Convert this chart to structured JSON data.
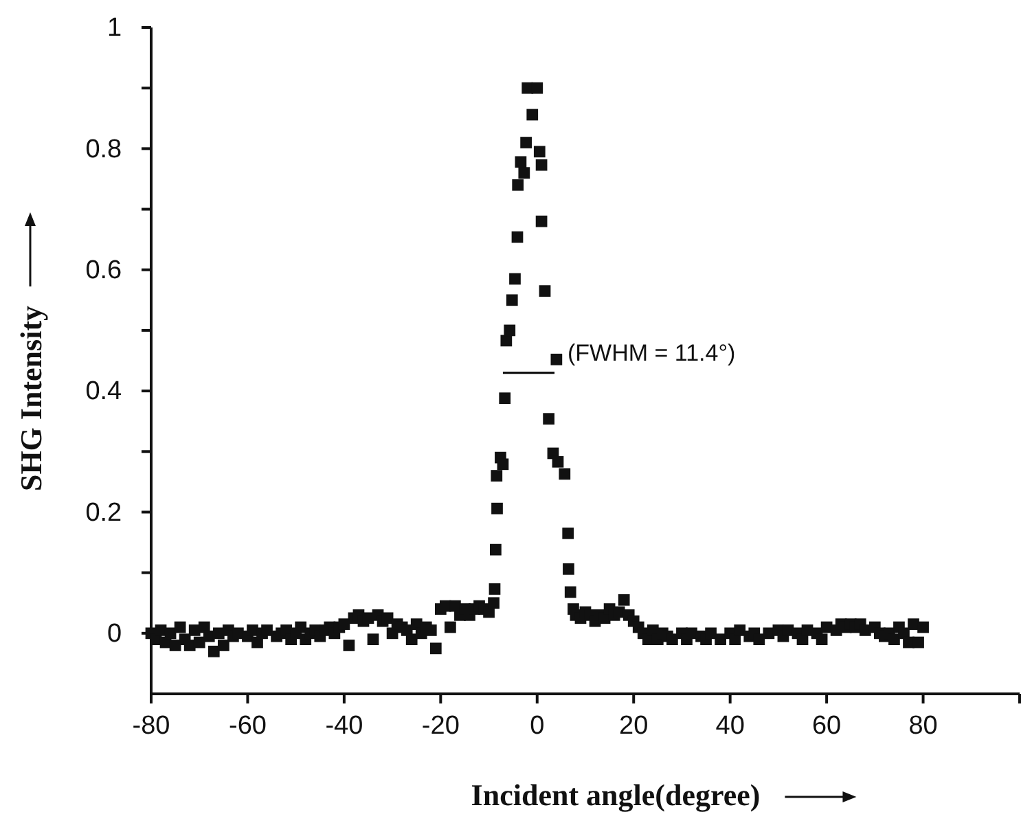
{
  "chart_data": {
    "type": "scatter",
    "xlabel": "Incident angle(degree)",
    "ylabel": "SHG Intensity",
    "marker": "square",
    "grid": false,
    "xlim": [
      -80,
      100
    ],
    "xticks": [
      -80,
      -60,
      -40,
      -20,
      0,
      20,
      40,
      60,
      80,
      {
        "value": 100,
        "label": null
      }
    ],
    "ylim": [
      -0.1,
      1
    ],
    "yticks": [
      0,
      {
        "value": 0.1,
        "label": null
      },
      0.2,
      {
        "value": 0.3,
        "label": null
      },
      0.4,
      {
        "value": 0.5,
        "label": null
      },
      0.6,
      {
        "value": 0.7,
        "label": null
      },
      0.8,
      {
        "value": 0.9,
        "label": null
      },
      1
    ],
    "annotations": [
      {
        "text": "(FWHM = 11.4°)",
        "x": 6.3,
        "y": 0.46
      }
    ],
    "series": [
      {
        "color": "#111111",
        "x": [
          -80,
          -79,
          -78,
          -77,
          -76,
          -75,
          -74,
          -73,
          -72,
          -71,
          -70,
          -69,
          -68,
          -67,
          -66,
          -65,
          -64,
          -63,
          -62,
          -60,
          -59,
          -58,
          -57,
          -56,
          -54,
          -53,
          -52,
          -51,
          -50,
          -49,
          -48,
          -47,
          -46,
          -45,
          -44,
          -43,
          -42,
          -41,
          -40,
          -39,
          -38,
          -37,
          -36,
          -35,
          -34,
          -33,
          -32,
          -31,
          -30,
          -29,
          -28,
          -27,
          -26,
          -25,
          -24,
          -23,
          -22,
          -21,
          -20,
          -19,
          -18,
          -17,
          -16,
          -15,
          -14,
          -13,
          -12,
          -11,
          -10,
          -9,
          -8.8,
          -8.6,
          -8.3,
          -8.4,
          -7.6,
          -7.1,
          -6.7,
          -6.4,
          -5.7,
          -5.2,
          -4.6,
          -4.1,
          -4,
          -3.4,
          -2.7,
          -2.3,
          -2,
          -1,
          0,
          0.5,
          0.9,
          0.9,
          1.6,
          2.4,
          3.3,
          4,
          4.3,
          5.7,
          6.4,
          6.5,
          6.9,
          7.5,
          8,
          9,
          10,
          11,
          12,
          13,
          14,
          15,
          16,
          17,
          18,
          19,
          20,
          21,
          22,
          23,
          24,
          25,
          26,
          27,
          28,
          30,
          31,
          32,
          34,
          35,
          36,
          38,
          40,
          41,
          42,
          44,
          45,
          46,
          48,
          50,
          51,
          52,
          54,
          55,
          56,
          58,
          59,
          60,
          62,
          63,
          64,
          65,
          66,
          67,
          68,
          70,
          71,
          72,
          73,
          74,
          75,
          76,
          77,
          78,
          79,
          80
        ],
        "values": [
          0,
          -0.01,
          0.005,
          -0.015,
          0,
          -0.02,
          0.01,
          -0.01,
          -0.02,
          0.005,
          -0.015,
          0.01,
          -0.005,
          -0.03,
          0,
          -0.02,
          0.005,
          -0.005,
          0,
          -0.005,
          0.005,
          -0.015,
          0,
          0.005,
          -0.005,
          0,
          0.005,
          -0.01,
          0,
          0.01,
          -0.01,
          0,
          0.005,
          -0.005,
          0.005,
          0.01,
          0,
          0.01,
          0.015,
          -0.02,
          0.025,
          0.03,
          0.02,
          0.025,
          -0.01,
          0.03,
          0.02,
          0.025,
          0,
          0.015,
          0.01,
          0.005,
          -0.01,
          0.015,
          0,
          0.01,
          0.005,
          -0.025,
          0.04,
          0.045,
          0.01,
          0.045,
          0.03,
          0.04,
          0.03,
          0.04,
          0.045,
          0.04,
          0.035,
          0.05,
          0.073,
          0.138,
          0.206,
          0.26,
          0.29,
          0.279,
          0.388,
          0.483,
          0.5,
          0.55,
          0.585,
          0.654,
          0.74,
          0.778,
          0.76,
          0.81,
          0.9,
          0.856,
          0.9,
          0.795,
          0.773,
          0.68,
          0.565,
          0.354,
          0.297,
          0.452,
          0.283,
          0.263,
          0.165,
          0.106,
          0.068,
          0.04,
          0.03,
          0.025,
          0.035,
          0.03,
          0.02,
          0.03,
          0.025,
          0.04,
          0.03,
          0.035,
          0.055,
          0.03,
          0.02,
          0.01,
          0,
          -0.01,
          0.005,
          -0.01,
          0,
          -0.005,
          -0.01,
          0,
          -0.01,
          0,
          -0.005,
          -0.01,
          0,
          -0.01,
          0,
          -0.01,
          0.005,
          -0.005,
          0,
          -0.01,
          0,
          0.005,
          -0.005,
          0.005,
          0,
          -0.01,
          0.005,
          0,
          -0.01,
          0.01,
          0.005,
          0.015,
          0.01,
          0.015,
          0.01,
          0.015,
          0.005,
          0.01,
          0,
          -0.005,
          0,
          -0.01,
          0.01,
          0,
          -0.015,
          0.015,
          -0.015,
          0.01
        ]
      },
      {
        "type": "line",
        "color": "#111111",
        "marker": "none",
        "line_style": "solid",
        "x": [
          -7.1,
          3.6
        ],
        "values": [
          0.43,
          0.43
        ]
      }
    ]
  }
}
